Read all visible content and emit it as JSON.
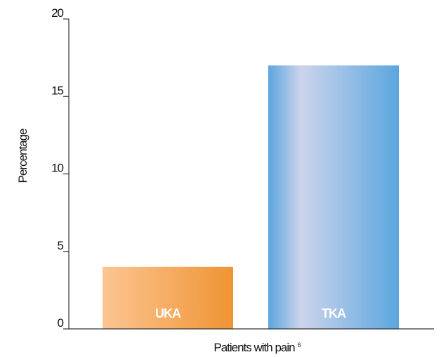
{
  "chart_data": {
    "type": "bar",
    "categories": [
      "UKA",
      "TKA"
    ],
    "values": [
      4,
      17
    ],
    "xlabel": "Patients with pain",
    "xlabel_superscript": "6",
    "ylabel": "Percentage",
    "ylim": [
      0,
      20
    ],
    "yticks": [
      0,
      5,
      10,
      15,
      20
    ],
    "grid": false,
    "legend": "none",
    "bar_colors": [
      {
        "light": "#fcc592",
        "dark": "#ef9433"
      },
      {
        "light": "#cdd4ec",
        "dark": "#5ba6df"
      }
    ],
    "axis_color": "#333333",
    "bar_label_color": "#ffffff"
  }
}
